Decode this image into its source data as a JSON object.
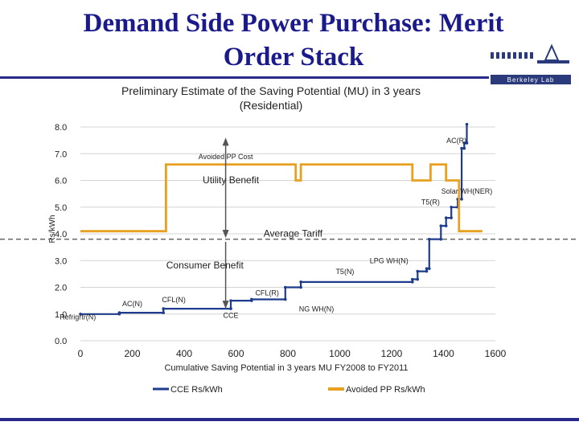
{
  "slide": {
    "title_line1": "Demand Side Power Purchase: Merit",
    "title_line2": "Order Stack",
    "logo_text": "Berkeley Lab"
  },
  "colors": {
    "cce": "#1f3c8c",
    "avoided": "#e8a020",
    "tariff": "#666666",
    "title": "#1a1a8c"
  },
  "chart_data": {
    "type": "line",
    "title": "Preliminary Estimate of the Saving Potential (MU) in 3 years",
    "subtitle": "(Residential)",
    "xlabel": "Cumulative Saving Potential in 3 years MU FY2008 to FY2011",
    "ylabel": "Rs/kWh",
    "xlim": [
      0,
      1600
    ],
    "ylim": [
      0,
      8
    ],
    "x_ticks": [
      0,
      200,
      400,
      600,
      800,
      1000,
      1200,
      1400,
      1600
    ],
    "x_tick_labels": [
      "0",
      "200",
      "400",
      "600",
      "800",
      "1000",
      "1200",
      "1400",
      "1600"
    ],
    "y_ticks": [
      0,
      1,
      2,
      3,
      4,
      5,
      6,
      7,
      8
    ],
    "y_tick_labels": [
      "0.0",
      "1.0",
      "2.0",
      "3.0",
      "4.0",
      "5.0",
      "6.0",
      "7.0",
      "8.0"
    ],
    "grid": true,
    "legend_position": "bottom",
    "series": [
      {
        "name": "CCE Rs/kWh",
        "x": [
          0,
          150,
          150,
          320,
          320,
          580,
          580,
          660,
          660,
          790,
          790,
          850,
          850,
          1280,
          1280,
          1300,
          1300,
          1335,
          1335,
          1345,
          1345,
          1390,
          1390,
          1410,
          1410,
          1430,
          1430,
          1455,
          1455,
          1470,
          1470,
          1480,
          1480,
          1490,
          1490
        ],
        "y": [
          1.0,
          1.0,
          1.05,
          1.05,
          1.2,
          1.2,
          1.5,
          1.5,
          1.55,
          1.55,
          2.0,
          2.0,
          2.2,
          2.2,
          2.3,
          2.3,
          2.6,
          2.6,
          2.7,
          2.7,
          3.8,
          3.8,
          4.3,
          4.3,
          4.6,
          4.6,
          5.0,
          5.0,
          5.3,
          5.3,
          7.2,
          7.2,
          7.4,
          7.4,
          8.1
        ]
      },
      {
        "name": "Avoided PP Rs/kWh",
        "x": [
          0,
          330,
          330,
          830,
          830,
          850,
          850,
          1280,
          1280,
          1350,
          1350,
          1410,
          1410,
          1460,
          1460,
          1480,
          1480,
          1550
        ],
        "y": [
          4.1,
          4.1,
          6.6,
          6.6,
          6.0,
          6.0,
          6.6,
          6.6,
          6.0,
          6.0,
          6.6,
          6.6,
          6.0,
          6.0,
          4.1,
          4.1,
          4.1,
          4.1
        ]
      }
    ],
    "average_tariff": 3.8,
    "annotations": [
      {
        "text": "Avoided PP Cost",
        "x": 560,
        "y": 6.8
      },
      {
        "text": "Utility Benefit",
        "x": 580,
        "y": 5.9
      },
      {
        "text": "Average Tariff",
        "x": 820,
        "y": 3.9
      },
      {
        "text": "Consumer Benefit",
        "x": 480,
        "y": 2.7
      },
      {
        "text": "AC(R)",
        "x": 1450,
        "y": 7.4
      },
      {
        "text": "Solar WH(NER)",
        "x": 1490,
        "y": 5.5
      },
      {
        "text": "T5(R)",
        "x": 1350,
        "y": 5.1
      },
      {
        "text": "LPG WH(N)",
        "x": 1190,
        "y": 2.9
      },
      {
        "text": "T5(N)",
        "x": 1020,
        "y": 2.5
      },
      {
        "text": "CFL(R)",
        "x": 720,
        "y": 1.7
      },
      {
        "text": "NG WH(N)",
        "x": 910,
        "y": 1.1
      },
      {
        "text": "CFL(N)",
        "x": 360,
        "y": 1.45
      },
      {
        "text": "AC(N)",
        "x": 200,
        "y": 1.3
      },
      {
        "text": "Refrigrtr(N)",
        "x": -10,
        "y": 0.8
      },
      {
        "text": "CCE",
        "x": 580,
        "y": 0.85
      }
    ]
  }
}
